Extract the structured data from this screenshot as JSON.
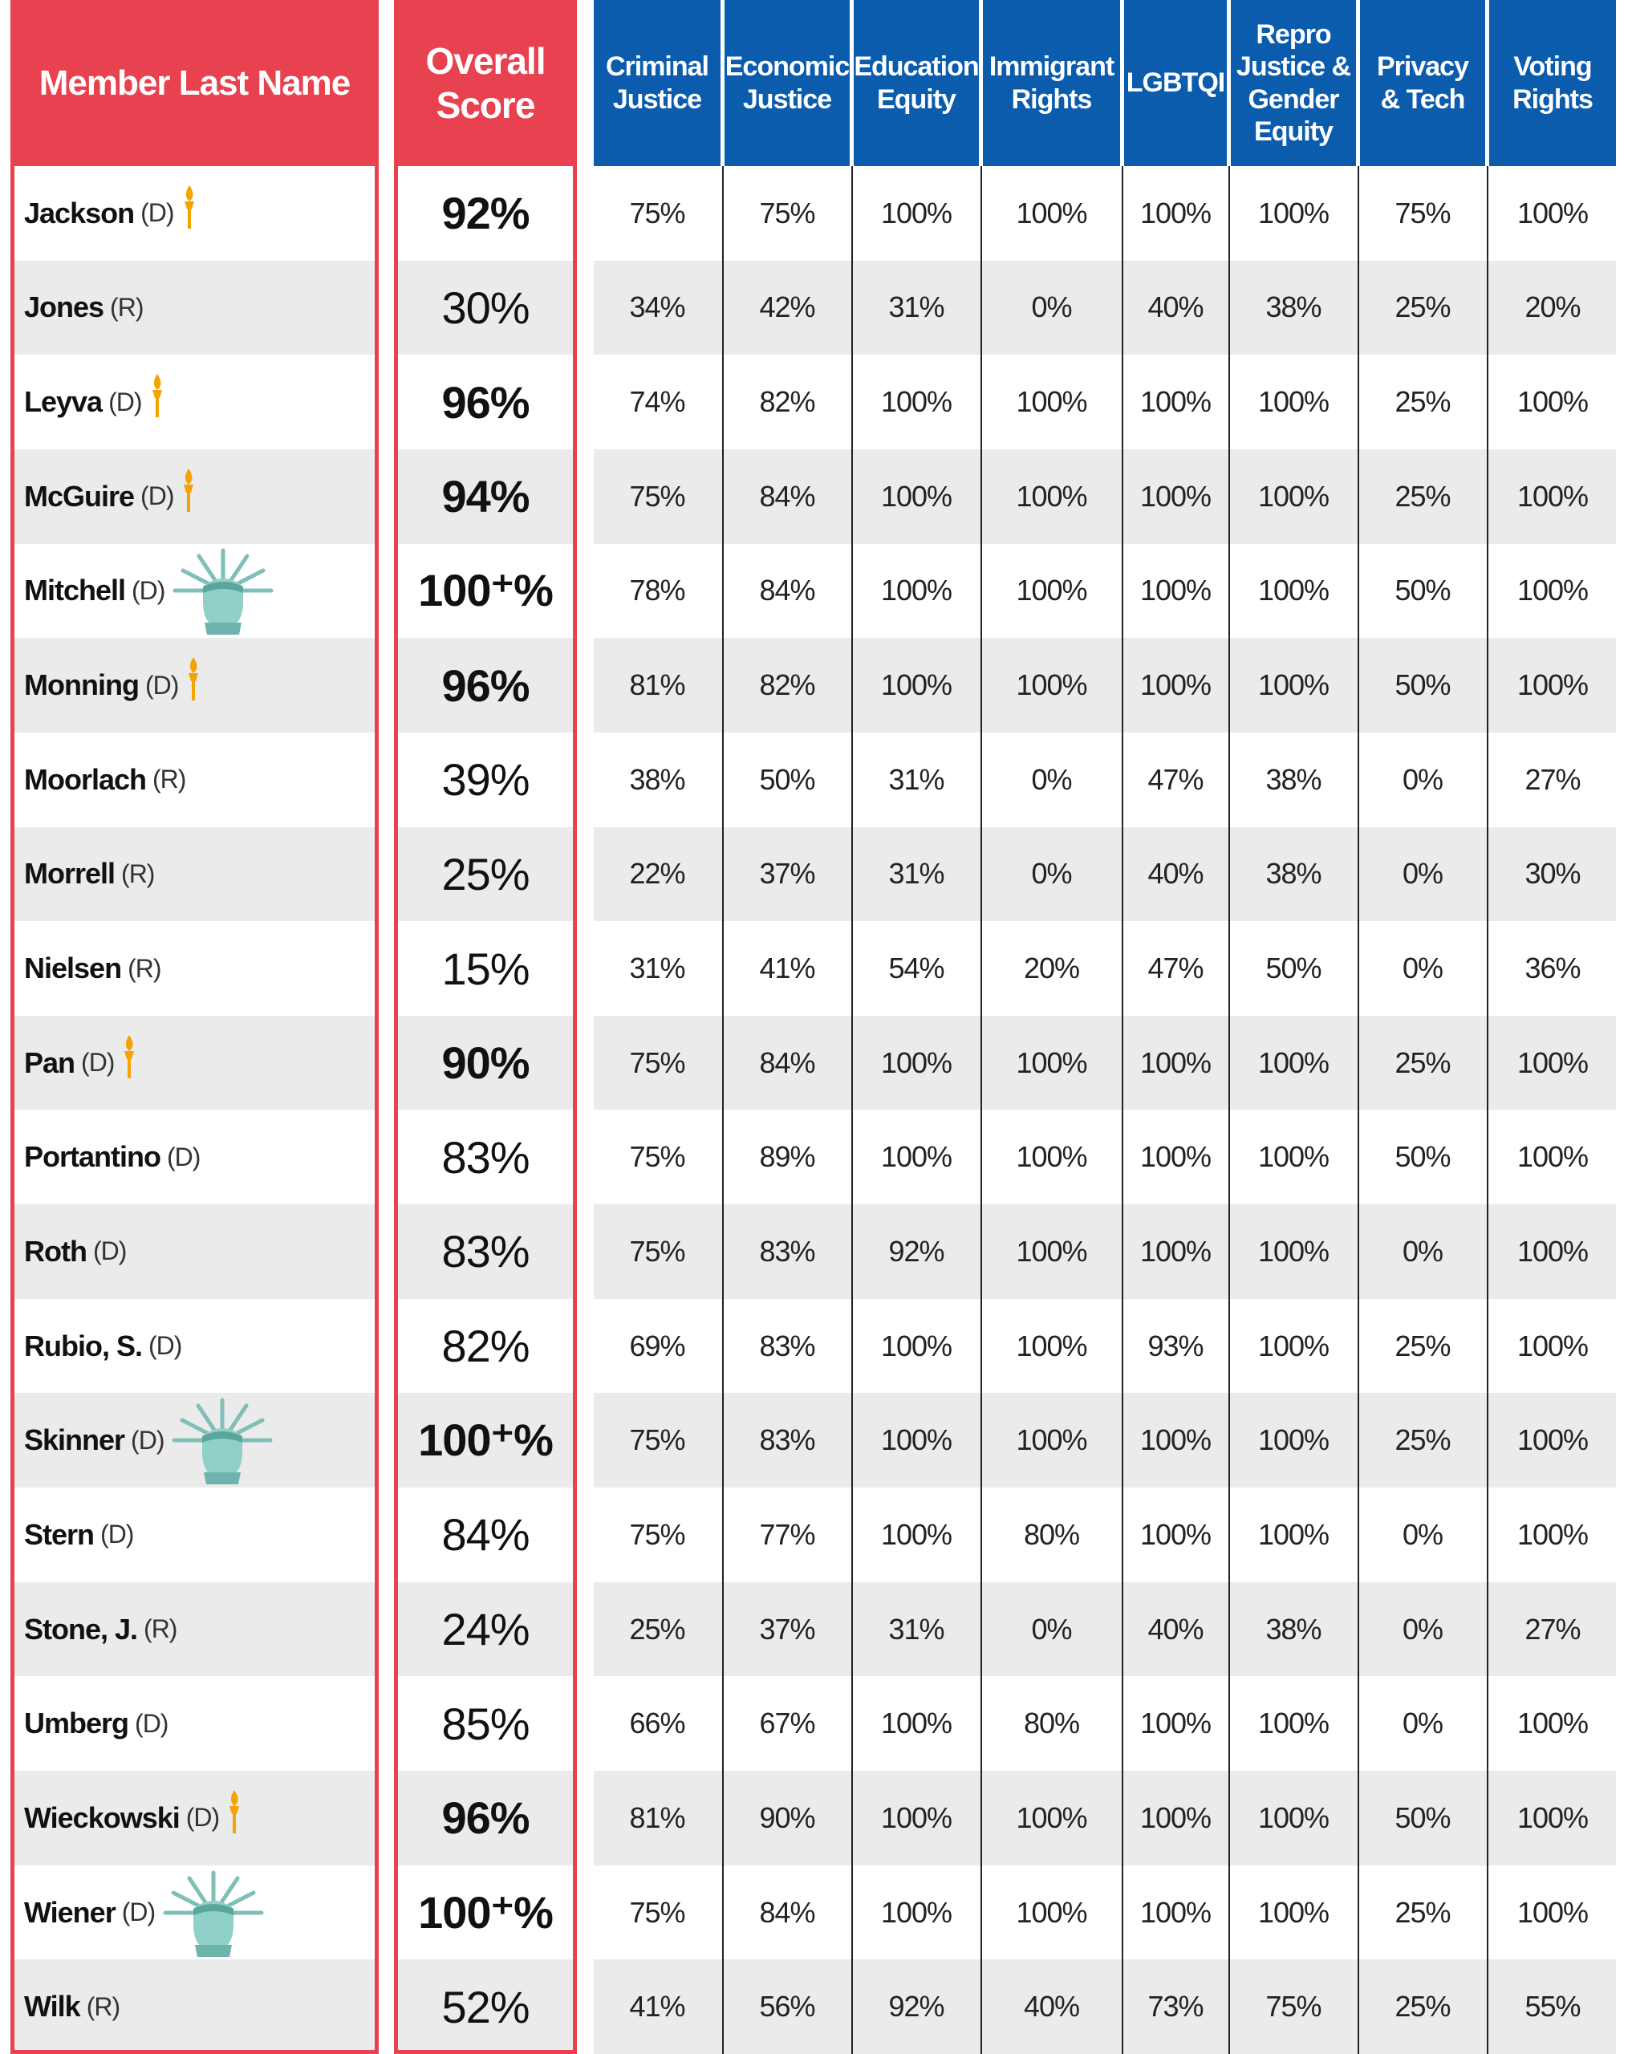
{
  "header": {
    "name": "Member Last Name",
    "overall": "Overall\nScore",
    "categories": [
      "Criminal\nJustice",
      "Economic\nJustice",
      "Education\nEquity",
      "Immigrant\nRights",
      "LGBTQI",
      "Repro\nJustice &\nGender\nEquity",
      "Privacy\n& Tech",
      "Voting\nRights"
    ]
  },
  "rows": [
    {
      "name": "Jackson",
      "party": "(D)",
      "icon": "torch",
      "overall": "92%",
      "scores": [
        "75%",
        "75%",
        "100%",
        "100%",
        "100%",
        "100%",
        "75%",
        "100%"
      ]
    },
    {
      "name": "Jones",
      "party": "(R)",
      "icon": null,
      "overall": "30%",
      "scores": [
        "34%",
        "42%",
        "31%",
        "0%",
        "40%",
        "38%",
        "25%",
        "20%"
      ]
    },
    {
      "name": "Leyva",
      "party": "(D)",
      "icon": "torch",
      "overall": "96%",
      "scores": [
        "74%",
        "82%",
        "100%",
        "100%",
        "100%",
        "100%",
        "25%",
        "100%"
      ]
    },
    {
      "name": "McGuire",
      "party": "(D)",
      "icon": "torch",
      "overall": "94%",
      "scores": [
        "75%",
        "84%",
        "100%",
        "100%",
        "100%",
        "100%",
        "25%",
        "100%"
      ]
    },
    {
      "name": "Mitchell",
      "party": "(D)",
      "icon": "statue",
      "overall": "100⁺%",
      "scores": [
        "78%",
        "84%",
        "100%",
        "100%",
        "100%",
        "100%",
        "50%",
        "100%"
      ]
    },
    {
      "name": "Monning",
      "party": "(D)",
      "icon": "torch",
      "overall": "96%",
      "scores": [
        "81%",
        "82%",
        "100%",
        "100%",
        "100%",
        "100%",
        "50%",
        "100%"
      ]
    },
    {
      "name": "Moorlach",
      "party": "(R)",
      "icon": null,
      "overall": "39%",
      "scores": [
        "38%",
        "50%",
        "31%",
        "0%",
        "47%",
        "38%",
        "0%",
        "27%"
      ]
    },
    {
      "name": "Morrell",
      "party": "(R)",
      "icon": null,
      "overall": "25%",
      "scores": [
        "22%",
        "37%",
        "31%",
        "0%",
        "40%",
        "38%",
        "0%",
        "30%"
      ]
    },
    {
      "name": "Nielsen",
      "party": "(R)",
      "icon": null,
      "overall": "15%",
      "scores": [
        "31%",
        "41%",
        "54%",
        "20%",
        "47%",
        "50%",
        "0%",
        "36%"
      ]
    },
    {
      "name": "Pan",
      "party": "(D)",
      "icon": "torch",
      "overall": "90%",
      "scores": [
        "75%",
        "84%",
        "100%",
        "100%",
        "100%",
        "100%",
        "25%",
        "100%"
      ]
    },
    {
      "name": "Portantino",
      "party": "(D)",
      "icon": null,
      "overall": "83%",
      "scores": [
        "75%",
        "89%",
        "100%",
        "100%",
        "100%",
        "100%",
        "50%",
        "100%"
      ]
    },
    {
      "name": "Roth",
      "party": "(D)",
      "icon": null,
      "overall": "83%",
      "scores": [
        "75%",
        "83%",
        "92%",
        "100%",
        "100%",
        "100%",
        "0%",
        "100%"
      ]
    },
    {
      "name": "Rubio, S.",
      "party": "(D)",
      "icon": null,
      "overall": "82%",
      "scores": [
        "69%",
        "83%",
        "100%",
        "100%",
        "93%",
        "100%",
        "25%",
        "100%"
      ]
    },
    {
      "name": "Skinner",
      "party": "(D)",
      "icon": "statue",
      "overall": "100⁺%",
      "scores": [
        "75%",
        "83%",
        "100%",
        "100%",
        "100%",
        "100%",
        "25%",
        "100%"
      ]
    },
    {
      "name": "Stern",
      "party": "(D)",
      "icon": null,
      "overall": "84%",
      "scores": [
        "75%",
        "77%",
        "100%",
        "80%",
        "100%",
        "100%",
        "0%",
        "100%"
      ]
    },
    {
      "name": "Stone, J.",
      "party": "(R)",
      "icon": null,
      "overall": "24%",
      "scores": [
        "25%",
        "37%",
        "31%",
        "0%",
        "40%",
        "38%",
        "0%",
        "27%"
      ]
    },
    {
      "name": "Umberg",
      "party": "(D)",
      "icon": null,
      "overall": "85%",
      "scores": [
        "66%",
        "67%",
        "100%",
        "80%",
        "100%",
        "100%",
        "0%",
        "100%"
      ]
    },
    {
      "name": "Wieckowski",
      "party": "(D)",
      "icon": "torch",
      "overall": "96%",
      "scores": [
        "81%",
        "90%",
        "100%",
        "100%",
        "100%",
        "100%",
        "50%",
        "100%"
      ]
    },
    {
      "name": "Wiener",
      "party": "(D)",
      "icon": "statue",
      "overall": "100⁺%",
      "scores": [
        "75%",
        "84%",
        "100%",
        "100%",
        "100%",
        "100%",
        "25%",
        "100%"
      ]
    },
    {
      "name": "Wilk",
      "party": "(R)",
      "icon": null,
      "overall": "52%",
      "scores": [
        "41%",
        "56%",
        "92%",
        "40%",
        "73%",
        "75%",
        "25%",
        "55%"
      ]
    }
  ]
}
